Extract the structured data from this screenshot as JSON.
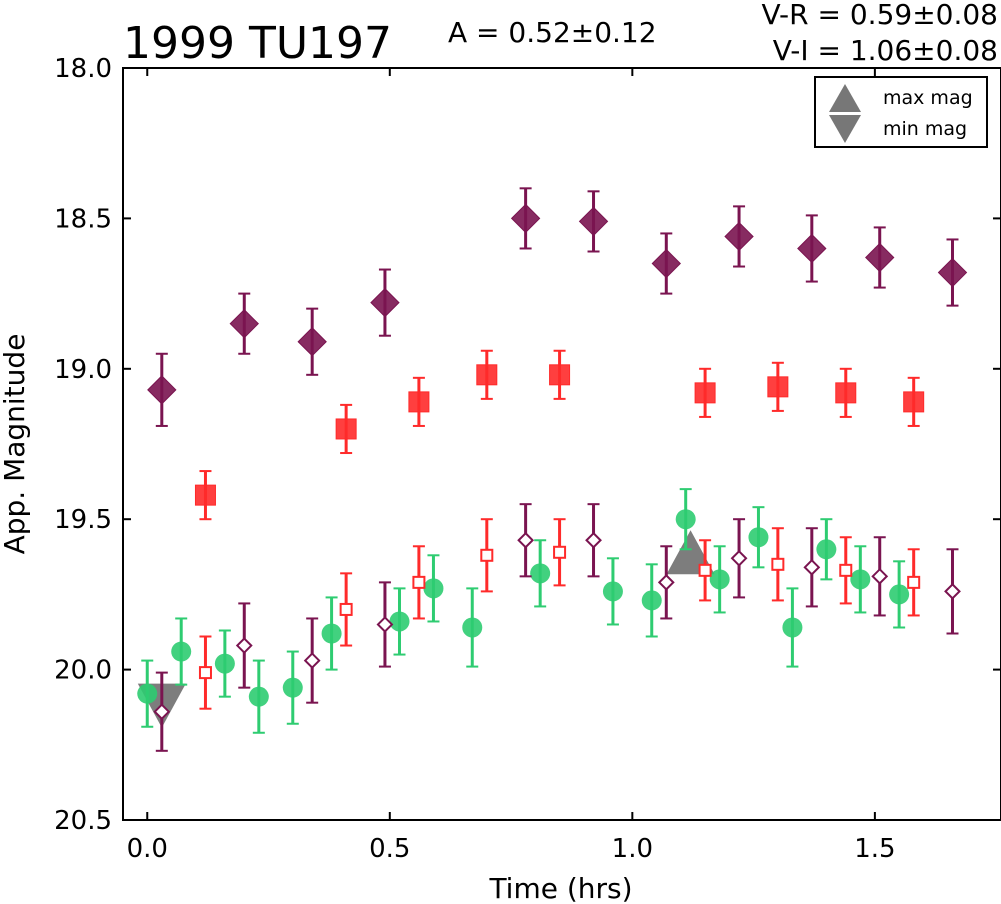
{
  "chart_data": {
    "type": "scatter",
    "title": "1999 TU197",
    "annotations": {
      "amplitude": "A  = 0.52±0.12",
      "vr": "V-R = 0.59±0.08",
      "vi": "V-I  = 1.06±0.08"
    },
    "xlabel": "Time (hrs)",
    "ylabel": "App. Magnitude",
    "xlim": [
      -0.05,
      1.76
    ],
    "ylim": [
      20.5,
      18.0
    ],
    "y_inverted": true,
    "grid": false,
    "x_ticks": [
      0.0,
      0.5,
      1.0,
      1.5
    ],
    "x_tick_labels": [
      "0.0",
      "0.5",
      "1.0",
      "1.5"
    ],
    "y_ticks": [
      18.0,
      18.5,
      19.0,
      19.5,
      20.0,
      20.5
    ],
    "y_tick_labels": [
      "18.0",
      "18.5",
      "19.0",
      "19.5",
      "20.0",
      "20.5"
    ],
    "legend": {
      "placement": "top-right",
      "entries": [
        {
          "label": "max mag",
          "marker": "triangle-up"
        },
        {
          "label": "min mag",
          "marker": "triangle-down"
        }
      ]
    },
    "colors": {
      "green": "#2ecc71",
      "red": "#ff2a2a",
      "purple": "#7a1450",
      "gray": "#666666"
    },
    "series": [
      {
        "marker": "circle",
        "fill": "filled",
        "color": "#2ecc71",
        "points": [
          {
            "x": 0.0,
            "y": 20.08,
            "err": 0.11
          },
          {
            "x": 0.07,
            "y": 19.94,
            "err": 0.11
          },
          {
            "x": 0.16,
            "y": 19.98,
            "err": 0.11
          },
          {
            "x": 0.23,
            "y": 20.09,
            "err": 0.12
          },
          {
            "x": 0.3,
            "y": 20.06,
            "err": 0.12
          },
          {
            "x": 0.38,
            "y": 19.88,
            "err": 0.12
          },
          {
            "x": 0.52,
            "y": 19.84,
            "err": 0.11
          },
          {
            "x": 0.59,
            "y": 19.73,
            "err": 0.11
          },
          {
            "x": 0.67,
            "y": 19.86,
            "err": 0.13
          },
          {
            "x": 0.81,
            "y": 19.68,
            "err": 0.11
          },
          {
            "x": 0.96,
            "y": 19.74,
            "err": 0.11
          },
          {
            "x": 1.04,
            "y": 19.77,
            "err": 0.12
          },
          {
            "x": 1.11,
            "y": 19.5,
            "err": 0.1
          },
          {
            "x": 1.18,
            "y": 19.7,
            "err": 0.11
          },
          {
            "x": 1.26,
            "y": 19.56,
            "err": 0.1
          },
          {
            "x": 1.33,
            "y": 19.86,
            "err": 0.13
          },
          {
            "x": 1.4,
            "y": 19.6,
            "err": 0.1
          },
          {
            "x": 1.47,
            "y": 19.7,
            "err": 0.11
          },
          {
            "x": 1.55,
            "y": 19.75,
            "err": 0.11
          }
        ]
      },
      {
        "marker": "square",
        "fill": "filled",
        "color": "#ff2a2a",
        "points": [
          {
            "x": 0.12,
            "y": 19.42,
            "err": 0.08
          },
          {
            "x": 0.41,
            "y": 19.2,
            "err": 0.08
          },
          {
            "x": 0.56,
            "y": 19.11,
            "err": 0.08
          },
          {
            "x": 0.7,
            "y": 19.02,
            "err": 0.08
          },
          {
            "x": 0.85,
            "y": 19.02,
            "err": 0.08
          },
          {
            "x": 1.15,
            "y": 19.08,
            "err": 0.08
          },
          {
            "x": 1.3,
            "y": 19.06,
            "err": 0.08
          },
          {
            "x": 1.44,
            "y": 19.08,
            "err": 0.08
          },
          {
            "x": 1.58,
            "y": 19.11,
            "err": 0.08
          }
        ]
      },
      {
        "marker": "square",
        "fill": "open",
        "color": "#ff2a2a",
        "points": [
          {
            "x": 0.12,
            "y": 20.01,
            "err": 0.12
          },
          {
            "x": 0.41,
            "y": 19.8,
            "err": 0.12
          },
          {
            "x": 0.56,
            "y": 19.71,
            "err": 0.12
          },
          {
            "x": 0.7,
            "y": 19.62,
            "err": 0.12
          },
          {
            "x": 0.85,
            "y": 19.61,
            "err": 0.11
          },
          {
            "x": 1.15,
            "y": 19.67,
            "err": 0.1
          },
          {
            "x": 1.3,
            "y": 19.65,
            "err": 0.12
          },
          {
            "x": 1.44,
            "y": 19.67,
            "err": 0.11
          },
          {
            "x": 1.58,
            "y": 19.71,
            "err": 0.11
          }
        ]
      },
      {
        "marker": "diamond",
        "fill": "filled",
        "color": "#7a1450",
        "points": [
          {
            "x": 0.03,
            "y": 19.07,
            "err": 0.12
          },
          {
            "x": 0.2,
            "y": 18.85,
            "err": 0.1
          },
          {
            "x": 0.34,
            "y": 18.91,
            "err": 0.11
          },
          {
            "x": 0.49,
            "y": 18.78,
            "err": 0.11
          },
          {
            "x": 0.78,
            "y": 18.5,
            "err": 0.1
          },
          {
            "x": 0.92,
            "y": 18.51,
            "err": 0.1
          },
          {
            "x": 1.07,
            "y": 18.65,
            "err": 0.1
          },
          {
            "x": 1.22,
            "y": 18.56,
            "err": 0.1
          },
          {
            "x": 1.37,
            "y": 18.6,
            "err": 0.11
          },
          {
            "x": 1.51,
            "y": 18.63,
            "err": 0.1
          },
          {
            "x": 1.66,
            "y": 18.68,
            "err": 0.11
          }
        ]
      },
      {
        "marker": "diamond",
        "fill": "open",
        "color": "#7a1450",
        "points": [
          {
            "x": 0.03,
            "y": 20.14,
            "err": 0.13
          },
          {
            "x": 0.2,
            "y": 19.92,
            "err": 0.14
          },
          {
            "x": 0.34,
            "y": 19.97,
            "err": 0.14
          },
          {
            "x": 0.49,
            "y": 19.85,
            "err": 0.14
          },
          {
            "x": 0.78,
            "y": 19.57,
            "err": 0.12
          },
          {
            "x": 0.92,
            "y": 19.57,
            "err": 0.12
          },
          {
            "x": 1.07,
            "y": 19.71,
            "err": 0.12
          },
          {
            "x": 1.22,
            "y": 19.63,
            "err": 0.13
          },
          {
            "x": 1.37,
            "y": 19.66,
            "err": 0.13
          },
          {
            "x": 1.51,
            "y": 19.69,
            "err": 0.13
          },
          {
            "x": 1.66,
            "y": 19.74,
            "err": 0.14
          }
        ]
      }
    ],
    "extrema": {
      "max_mag": {
        "x": 1.12,
        "y": 19.63
      },
      "min_mag": {
        "x": 0.03,
        "y": 20.1
      }
    }
  }
}
